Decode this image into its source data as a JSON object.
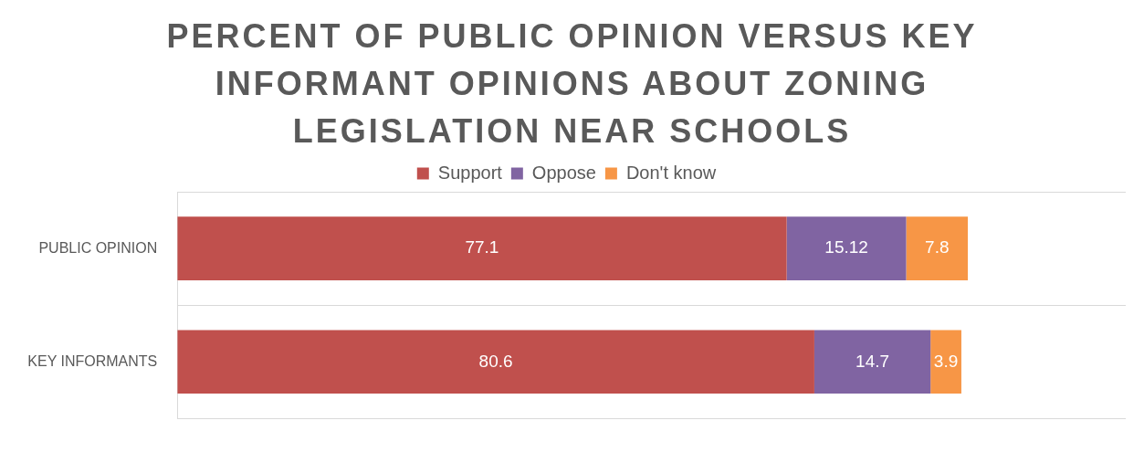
{
  "chart_data": {
    "type": "bar",
    "orientation": "horizontal",
    "stacked": true,
    "title": "PERCENT OF PUBLIC OPINION VERSUS KEY INFORMANT OPINIONS ABOUT ZONING LEGISLATION NEAR SCHOOLS",
    "categories": [
      "PUBLIC OPINION",
      "KEY INFORMANTS"
    ],
    "series": [
      {
        "name": "Support",
        "color": "#c0504d",
        "values": [
          77.1,
          80.6
        ]
      },
      {
        "name": "Oppose",
        "color": "#8064a2",
        "values": [
          15.12,
          14.7
        ]
      },
      {
        "name": "Don't know",
        "color": "#f79646",
        "values": [
          7.8,
          3.9
        ]
      }
    ],
    "xlim": [
      0,
      120
    ],
    "tick_labels": "y",
    "grid": "y",
    "legend": "top",
    "data_labels": true
  }
}
